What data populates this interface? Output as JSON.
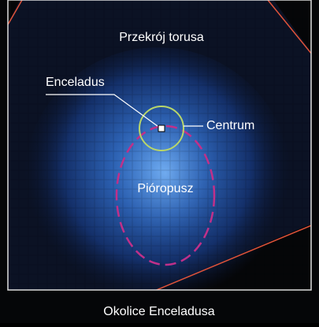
{
  "labels": {
    "region": "Przekrój torusa",
    "moon": "Enceladus",
    "center": "Centrum",
    "plume": "Pióropusz"
  },
  "caption": "Okolice Enceladusa"
}
